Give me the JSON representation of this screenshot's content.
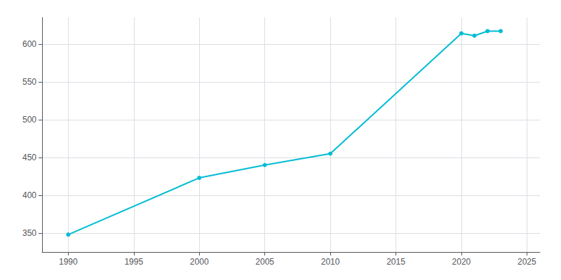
{
  "chart_data": {
    "type": "line",
    "x": [
      1990,
      2000,
      2005,
      2010,
      2020,
      2021,
      2022,
      2023
    ],
    "values": [
      348,
      423,
      440,
      455,
      614,
      611,
      617,
      617
    ],
    "color": "#00bcd4",
    "marker": "circle",
    "xlim": [
      1988,
      2026
    ],
    "ylim": [
      325,
      635
    ],
    "xticks": [
      1990,
      1995,
      2000,
      2005,
      2010,
      2015,
      2020,
      2025
    ],
    "yticks": [
      350,
      400,
      450,
      500,
      550,
      600
    ],
    "grid": true
  }
}
